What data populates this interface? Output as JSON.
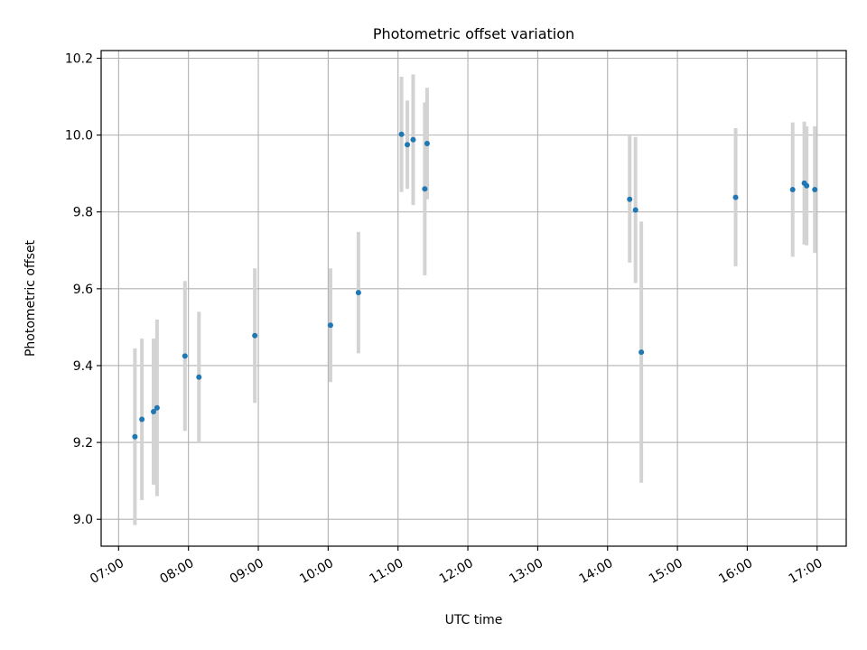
{
  "chart_data": {
    "type": "scatter",
    "title": "Photometric offset variation",
    "xlabel": "UTC time",
    "ylabel": "Photometric offset",
    "xlim": [
      "06:45",
      "17:25"
    ],
    "ylim": [
      8.93,
      10.22
    ],
    "x_tick_labels": [
      "07:00",
      "08:00",
      "09:00",
      "10:00",
      "11:00",
      "12:00",
      "13:00",
      "14:00",
      "15:00",
      "16:00",
      "17:00"
    ],
    "y_tick_labels": [
      "9.0",
      "9.2",
      "9.4",
      "9.6",
      "9.8",
      "10.0",
      "10.2"
    ],
    "grid": true,
    "colors": {
      "point": "#1f77b4",
      "errorbar": "#d3d3d3",
      "grid": "#b0b0b0"
    },
    "series": [
      {
        "points": [
          {
            "x": "07:14",
            "y": 9.215,
            "err": 0.23
          },
          {
            "x": "07:20",
            "y": 9.26,
            "err": 0.21
          },
          {
            "x": "07:30",
            "y": 9.28,
            "err": 0.19
          },
          {
            "x": "07:33",
            "y": 9.29,
            "err": 0.23
          },
          {
            "x": "07:57",
            "y": 9.425,
            "err": 0.195
          },
          {
            "x": "08:09",
            "y": 9.37,
            "err": 0.17
          },
          {
            "x": "08:57",
            "y": 9.478,
            "err": 0.175
          },
          {
            "x": "10:02",
            "y": 9.505,
            "err": 0.148
          },
          {
            "x": "10:26",
            "y": 9.59,
            "err": 0.158
          },
          {
            "x": "11:03",
            "y": 10.002,
            "err": 0.15
          },
          {
            "x": "11:08",
            "y": 9.975,
            "err": 0.115
          },
          {
            "x": "11:13",
            "y": 9.988,
            "err": 0.17
          },
          {
            "x": "11:23",
            "y": 9.86,
            "err": 0.225
          },
          {
            "x": "11:25",
            "y": 9.978,
            "err": 0.145
          },
          {
            "x": "14:19",
            "y": 9.833,
            "err": 0.165
          },
          {
            "x": "14:24",
            "y": 9.805,
            "err": 0.19
          },
          {
            "x": "14:29",
            "y": 9.435,
            "err": 0.34
          },
          {
            "x": "15:50",
            "y": 9.838,
            "err": 0.18
          },
          {
            "x": "16:39",
            "y": 9.858,
            "err": 0.175
          },
          {
            "x": "16:49",
            "y": 9.875,
            "err": 0.16
          },
          {
            "x": "16:51",
            "y": 9.868,
            "err": 0.155
          },
          {
            "x": "16:58",
            "y": 9.858,
            "err": 0.165
          }
        ]
      }
    ]
  }
}
